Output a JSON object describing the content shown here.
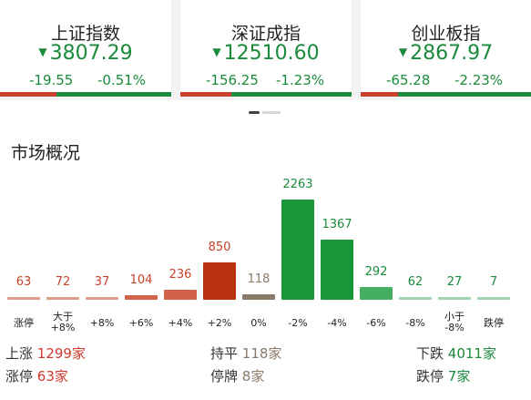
{
  "indices": [
    {
      "name": "上证指数",
      "price": "3807.29",
      "change": "-19.55",
      "pct": "-0.51%",
      "red_share": 0.33
    },
    {
      "name": "深证成指",
      "price": "12510.60",
      "change": "-156.25",
      "pct": "-1.23%",
      "red_share": 0.3
    },
    {
      "name": "创业板指",
      "price": "2867.97",
      "change": "-65.28",
      "pct": "-2.23%",
      "red_share": 0.22
    }
  ],
  "down_arrow": "▼",
  "overview_title": "市场概况",
  "colors": {
    "up_strong": "#b9310f",
    "up_mid": "#d2634a",
    "up_light": "#dc9c86",
    "flat": "#8a7a6a",
    "down_strong": "#17973a",
    "down_mid": "#45ae62",
    "down_light": "#9fd4ae"
  },
  "chart_data": {
    "type": "bar",
    "categories": [
      "涨停",
      "大于\n+8%",
      "+8%",
      "+6%",
      "+4%",
      "+2%",
      "0%",
      "-2%",
      "-4%",
      "-6%",
      "-8%",
      "小于\n-8%",
      "跌停"
    ],
    "values": [
      63,
      72,
      37,
      104,
      236,
      850,
      118,
      2263,
      1367,
      292,
      62,
      27,
      7
    ],
    "ylim": [
      0,
      2263
    ]
  },
  "stats": {
    "up": {
      "label": "上涨",
      "value": "1299家"
    },
    "flat": {
      "label": "持平",
      "value": "118家"
    },
    "down": {
      "label": "下跌",
      "value": "4011家"
    },
    "limit_up": {
      "label": "涨停",
      "value": "63家"
    },
    "suspended": {
      "label": "停牌",
      "value": "8家"
    },
    "limit_down": {
      "label": "跌停",
      "value": "7家"
    }
  }
}
